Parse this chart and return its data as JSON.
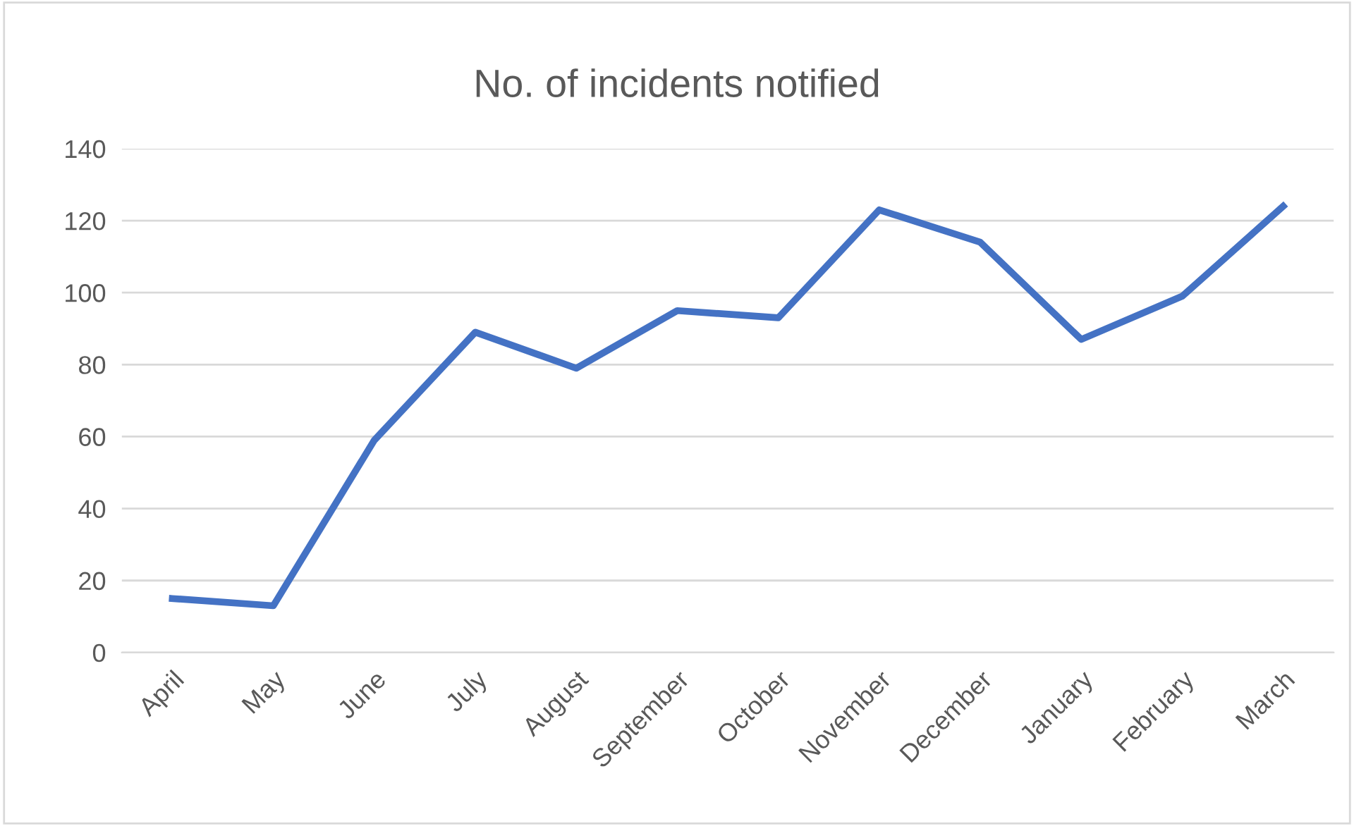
{
  "chart_data": {
    "type": "line",
    "title": "No. of incidents notified",
    "categories": [
      "April",
      "May",
      "June",
      "July",
      "August",
      "September",
      "October",
      "November",
      "December",
      "January",
      "February",
      "March"
    ],
    "series": [
      {
        "color": "#4472c4",
        "values": [
          15,
          13,
          59,
          89,
          79,
          95,
          93,
          123,
          114,
          87,
          99,
          124
        ]
      }
    ],
    "ylim": [
      0,
      140
    ],
    "yticks": [
      0,
      20,
      40,
      60,
      80,
      100,
      120,
      140
    ],
    "grid": "y",
    "legend": false,
    "marker": "none",
    "line_style": "solid"
  }
}
